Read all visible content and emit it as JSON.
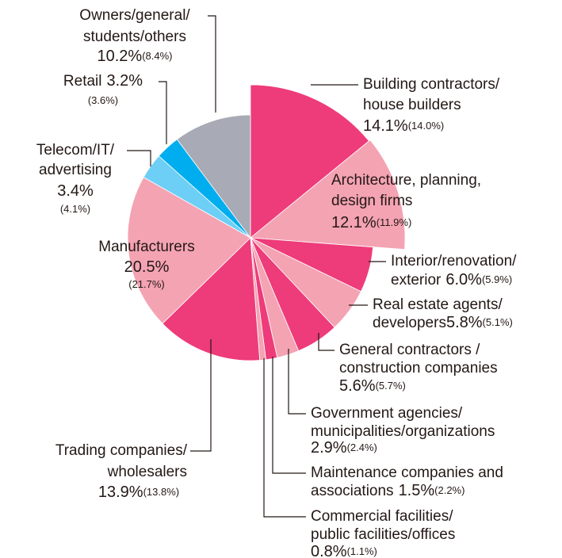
{
  "chart_data": {
    "type": "pie",
    "categories": [
      [
        "Building contractors/",
        "house builders"
      ],
      [
        "Architecture, planning,",
        "design firms"
      ],
      [
        "Interior/renovation/",
        "exterior"
      ],
      [
        "Real estate agents/",
        "developers"
      ],
      [
        "General contractors /",
        "construction companies"
      ],
      [
        "Government agencies/",
        "municipalities/organizations"
      ],
      [
        "Maintenance companies and",
        "associations"
      ],
      [
        "Commercial facilities/",
        "public facilities/offices"
      ],
      [
        "Trading companies/",
        "wholesalers"
      ],
      [
        "Manufacturers"
      ],
      [
        "Telecom/IT/",
        "advertising"
      ],
      [
        "Retail"
      ],
      [
        "Owners/general/",
        "students/others"
      ]
    ],
    "values": [
      14.1,
      12.1,
      6.0,
      5.8,
      5.6,
      2.9,
      1.5,
      0.8,
      13.9,
      20.5,
      3.4,
      3.2,
      10.2
    ],
    "value_labels": [
      "14.1%",
      "12.1%",
      "6.0%",
      "5.8%",
      "5.6%",
      "2.9%",
      "1.5%",
      "0.8%",
      "13.9%",
      "20.5%",
      "3.4%",
      "3.2%",
      "10.2%"
    ],
    "prior_values": [
      14.0,
      11.9,
      5.9,
      5.1,
      5.7,
      2.4,
      2.2,
      1.1,
      13.8,
      21.7,
      4.1,
      3.6,
      8.4
    ],
    "prior_value_labels": [
      "(14.0%)",
      "(11.9%)",
      "(5.9%)",
      "(5.1%)",
      "(5.7%)",
      "(2.4%)",
      "(2.2%)",
      "(1.1%)",
      "(13.8%)",
      "(21.7%)",
      "(4.1%)",
      "(3.6%)",
      "(8.4%)"
    ],
    "colors": [
      "#ee3b7a",
      "#f4a3b3",
      "#ee3b7a",
      "#f4a3b3",
      "#ee3b7a",
      "#f4a3b3",
      "#ee3b7a",
      "#f4a3b3",
      "#ee3b7a",
      "#f4a3b3",
      "#6dcff6",
      "#00aeef",
      "#a8aab5"
    ]
  }
}
